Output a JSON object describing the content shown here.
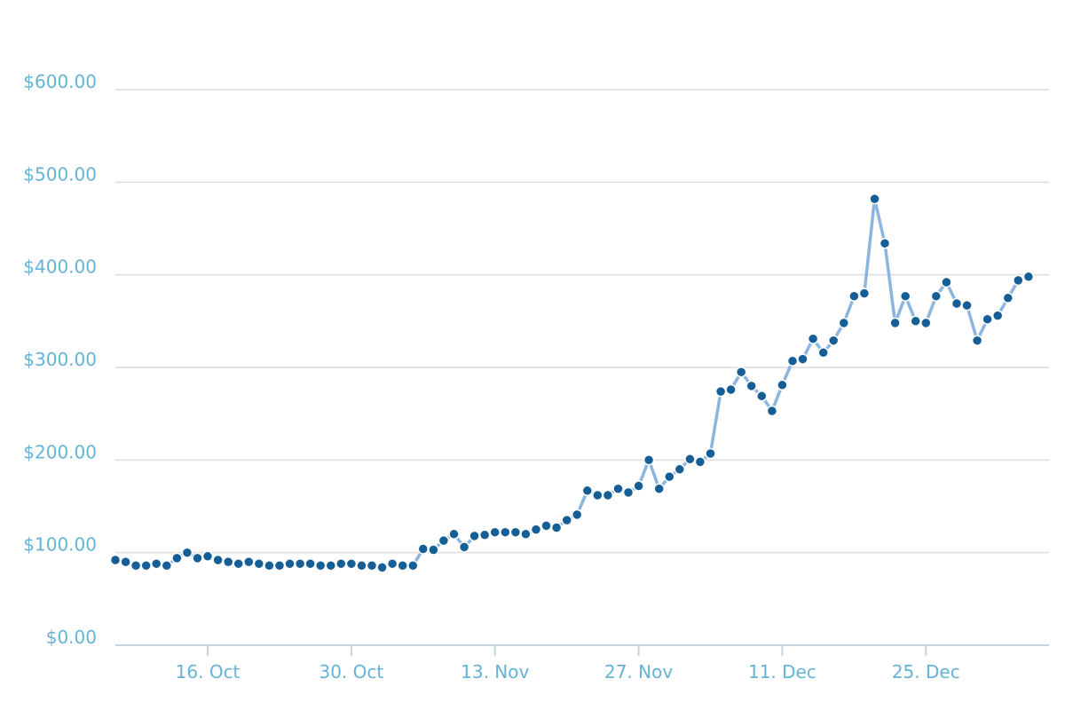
{
  "chart_data": {
    "type": "line",
    "title": "",
    "xlabel": "",
    "ylabel": "",
    "ylim": [
      0,
      600
    ],
    "grid": true,
    "legend": "none",
    "x_range": [
      "2017-10-07",
      "2018-01-06"
    ],
    "y_ticks": [
      {
        "value": 0,
        "label": "$0.00"
      },
      {
        "value": 100,
        "label": "$100.00"
      },
      {
        "value": 200,
        "label": "$200.00"
      },
      {
        "value": 300,
        "label": "$300.00"
      },
      {
        "value": 400,
        "label": "$400.00"
      },
      {
        "value": 500,
        "label": "$500.00"
      },
      {
        "value": 600,
        "label": "$600.00"
      }
    ],
    "x_ticks": [
      {
        "date": "2017-10-16",
        "label": "16. Oct"
      },
      {
        "date": "2017-10-30",
        "label": "30. Oct"
      },
      {
        "date": "2017-11-13",
        "label": "13. Nov"
      },
      {
        "date": "2017-11-27",
        "label": "27. Nov"
      },
      {
        "date": "2017-12-11",
        "label": "11. Dec"
      },
      {
        "date": "2017-12-25",
        "label": "25. Dec"
      }
    ],
    "colors": {
      "line": "#8ab6e0",
      "point": "#165e96",
      "tick_text": "#66b3d6",
      "grid": "#dcdcdc",
      "axis": "#c6d4e0"
    },
    "series": [
      {
        "x": [
          "2017-10-07",
          "2017-10-08",
          "2017-10-09",
          "2017-10-10",
          "2017-10-11",
          "2017-10-12",
          "2017-10-13",
          "2017-10-14",
          "2017-10-15",
          "2017-10-16",
          "2017-10-17",
          "2017-10-18",
          "2017-10-19",
          "2017-10-20",
          "2017-10-21",
          "2017-10-22",
          "2017-10-23",
          "2017-10-24",
          "2017-10-25",
          "2017-10-26",
          "2017-10-27",
          "2017-10-28",
          "2017-10-29",
          "2017-10-30",
          "2017-10-31",
          "2017-11-01",
          "2017-11-02",
          "2017-11-03",
          "2017-11-04",
          "2017-11-05",
          "2017-11-06",
          "2017-11-07",
          "2017-11-08",
          "2017-11-09",
          "2017-11-10",
          "2017-11-11",
          "2017-11-12",
          "2017-11-13",
          "2017-11-14",
          "2017-11-15",
          "2017-11-16",
          "2017-11-17",
          "2017-11-18",
          "2017-11-19",
          "2017-11-20",
          "2017-11-21",
          "2017-11-22",
          "2017-11-23",
          "2017-11-24",
          "2017-11-25",
          "2017-11-26",
          "2017-11-27",
          "2017-11-28",
          "2017-11-29",
          "2017-11-30",
          "2017-12-01",
          "2017-12-02",
          "2017-12-03",
          "2017-12-04",
          "2017-12-05",
          "2017-12-06",
          "2017-12-07",
          "2017-12-08",
          "2017-12-09",
          "2017-12-10",
          "2017-12-11",
          "2017-12-12",
          "2017-12-13",
          "2017-12-14",
          "2017-12-15",
          "2017-12-16",
          "2017-12-17",
          "2017-12-18",
          "2017-12-19",
          "2017-12-20",
          "2017-12-21",
          "2017-12-22",
          "2017-12-23",
          "2017-12-24",
          "2017-12-25",
          "2017-12-26",
          "2017-12-27",
          "2017-12-28",
          "2017-12-29",
          "2017-12-30",
          "2017-12-31",
          "2018-01-01",
          "2018-01-02",
          "2018-01-03",
          "2018-01-04",
          "2018-01-05",
          "2018-01-06"
        ],
        "values": [
          92,
          90,
          86,
          86,
          88,
          86,
          94,
          100,
          94,
          96,
          92,
          90,
          88,
          90,
          88,
          86,
          86,
          88,
          88,
          88,
          86,
          86,
          88,
          88,
          86,
          86,
          84,
          88,
          86,
          86,
          104,
          103,
          113,
          120,
          106,
          118,
          119,
          122,
          122,
          122,
          120,
          125,
          129,
          127,
          135,
          141,
          167,
          162,
          162,
          169,
          165,
          172,
          200,
          169,
          182,
          190,
          201,
          198,
          207,
          274,
          276,
          295,
          280,
          269,
          253,
          281,
          307,
          309,
          331,
          316,
          329,
          348,
          377,
          380,
          482,
          434,
          348,
          377,
          350,
          348,
          377,
          392,
          369,
          367,
          329,
          352,
          356,
          375,
          394,
          398,
          null,
          null
        ]
      }
    ]
  }
}
